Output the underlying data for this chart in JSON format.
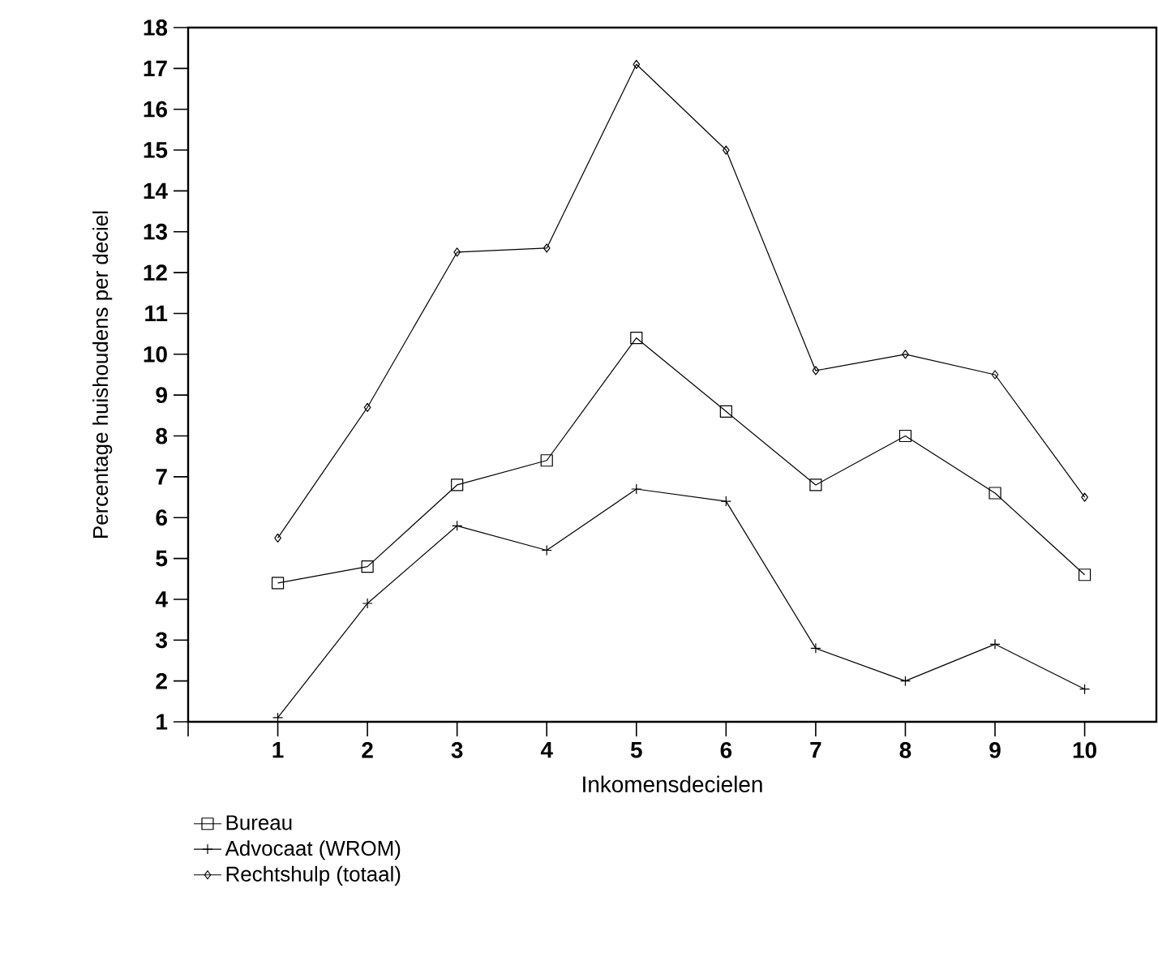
{
  "chart_data": {
    "type": "line",
    "xlabel": "Inkomensdecielen",
    "ylabel": "Percentage huishoudens per deciel",
    "x": [
      1,
      2,
      3,
      4,
      5,
      6,
      7,
      8,
      9,
      10
    ],
    "xlim": [
      0,
      10.8
    ],
    "xticks": [
      {
        "value": 0,
        "label": null
      },
      1,
      2,
      3,
      4,
      5,
      6,
      7,
      8,
      9,
      10
    ],
    "ylim": [
      1,
      18
    ],
    "yticks": [
      1,
      2,
      3,
      4,
      5,
      6,
      7,
      8,
      9,
      10,
      11,
      12,
      13,
      14,
      15,
      16,
      17,
      18
    ],
    "grid": false,
    "legend": "bottom left",
    "line_style": "solid",
    "series": [
      {
        "name": "Bureau",
        "color": "#000000",
        "marker": "square",
        "values": [
          4.4,
          4.8,
          6.8,
          7.4,
          10.4,
          8.6,
          6.8,
          8.0,
          6.6,
          4.6
        ]
      },
      {
        "name": "Advocaat (WROM)",
        "color": "#000000",
        "marker": "cross",
        "values": [
          1.1,
          3.9,
          5.8,
          5.2,
          6.7,
          6.4,
          2.8,
          2.0,
          2.9,
          1.8
        ]
      },
      {
        "name": "Rechtshulp (totaal)",
        "color": "#000000",
        "marker": "diamond",
        "values": [
          5.5,
          8.7,
          12.5,
          12.6,
          17.1,
          15.0,
          9.6,
          10.0,
          9.5,
          6.5
        ]
      }
    ]
  }
}
